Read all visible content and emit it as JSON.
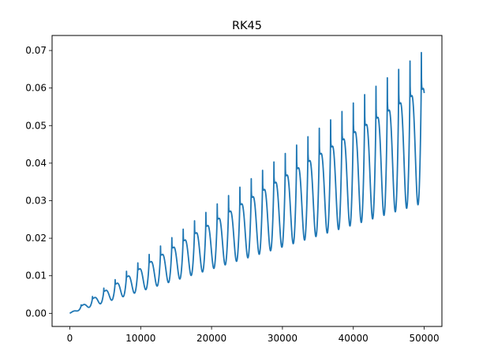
{
  "chart_data": {
    "type": "line",
    "title": "RK45",
    "xlabel": "",
    "ylabel": "",
    "xlim": [
      -2500,
      52500
    ],
    "ylim": [
      -0.0035,
      0.074
    ],
    "xticks": [
      0,
      10000,
      20000,
      30000,
      40000,
      50000
    ],
    "xtick_labels": [
      "0",
      "10000",
      "20000",
      "30000",
      "40000",
      "50000"
    ],
    "yticks": [
      0.0,
      0.01,
      0.02,
      0.03,
      0.04,
      0.05,
      0.06,
      0.07
    ],
    "ytick_labels": [
      "0.00",
      "0.01",
      "0.02",
      "0.03",
      "0.04",
      "0.05",
      "0.06",
      "0.07"
    ],
    "grid": false,
    "legend": "none",
    "series": [
      {
        "color": "#1f77b4",
        "x_start": 0,
        "x_end": 50000,
        "growth_per_unit": 1.4e-06,
        "oscillation_period": 1600,
        "oscillation_amplitude_per_unit": 2.85e-07,
        "peaks": [
          {
            "x": 1600,
            "y": 0.0016
          },
          {
            "x": 3200,
            "y": 0.0037
          },
          {
            "x": 4800,
            "y": 0.0059
          },
          {
            "x": 6400,
            "y": 0.0079
          },
          {
            "x": 8000,
            "y": 0.0101
          },
          {
            "x": 9600,
            "y": 0.0123
          },
          {
            "x": 11200,
            "y": 0.0146
          },
          {
            "x": 12800,
            "y": 0.0168
          },
          {
            "x": 14400,
            "y": 0.019
          },
          {
            "x": 16000,
            "y": 0.0212
          },
          {
            "x": 17600,
            "y": 0.0234
          },
          {
            "x": 19200,
            "y": 0.0257
          },
          {
            "x": 20800,
            "y": 0.0279
          },
          {
            "x": 22400,
            "y": 0.0301
          },
          {
            "x": 24000,
            "y": 0.0324
          },
          {
            "x": 25600,
            "y": 0.0346
          },
          {
            "x": 27200,
            "y": 0.0368
          },
          {
            "x": 28800,
            "y": 0.0391
          },
          {
            "x": 30400,
            "y": 0.0413
          },
          {
            "x": 32000,
            "y": 0.0436
          },
          {
            "x": 33600,
            "y": 0.0458
          },
          {
            "x": 35200,
            "y": 0.0481
          },
          {
            "x": 36800,
            "y": 0.0504
          },
          {
            "x": 38400,
            "y": 0.0526
          },
          {
            "x": 40000,
            "y": 0.0549
          },
          {
            "x": 41600,
            "y": 0.0572
          },
          {
            "x": 43200,
            "y": 0.0594
          },
          {
            "x": 44800,
            "y": 0.0617
          },
          {
            "x": 46400,
            "y": 0.064
          },
          {
            "x": 48000,
            "y": 0.0663
          },
          {
            "x": 49600,
            "y": 0.0709
          }
        ],
        "end_value": 0.0621
      }
    ]
  }
}
